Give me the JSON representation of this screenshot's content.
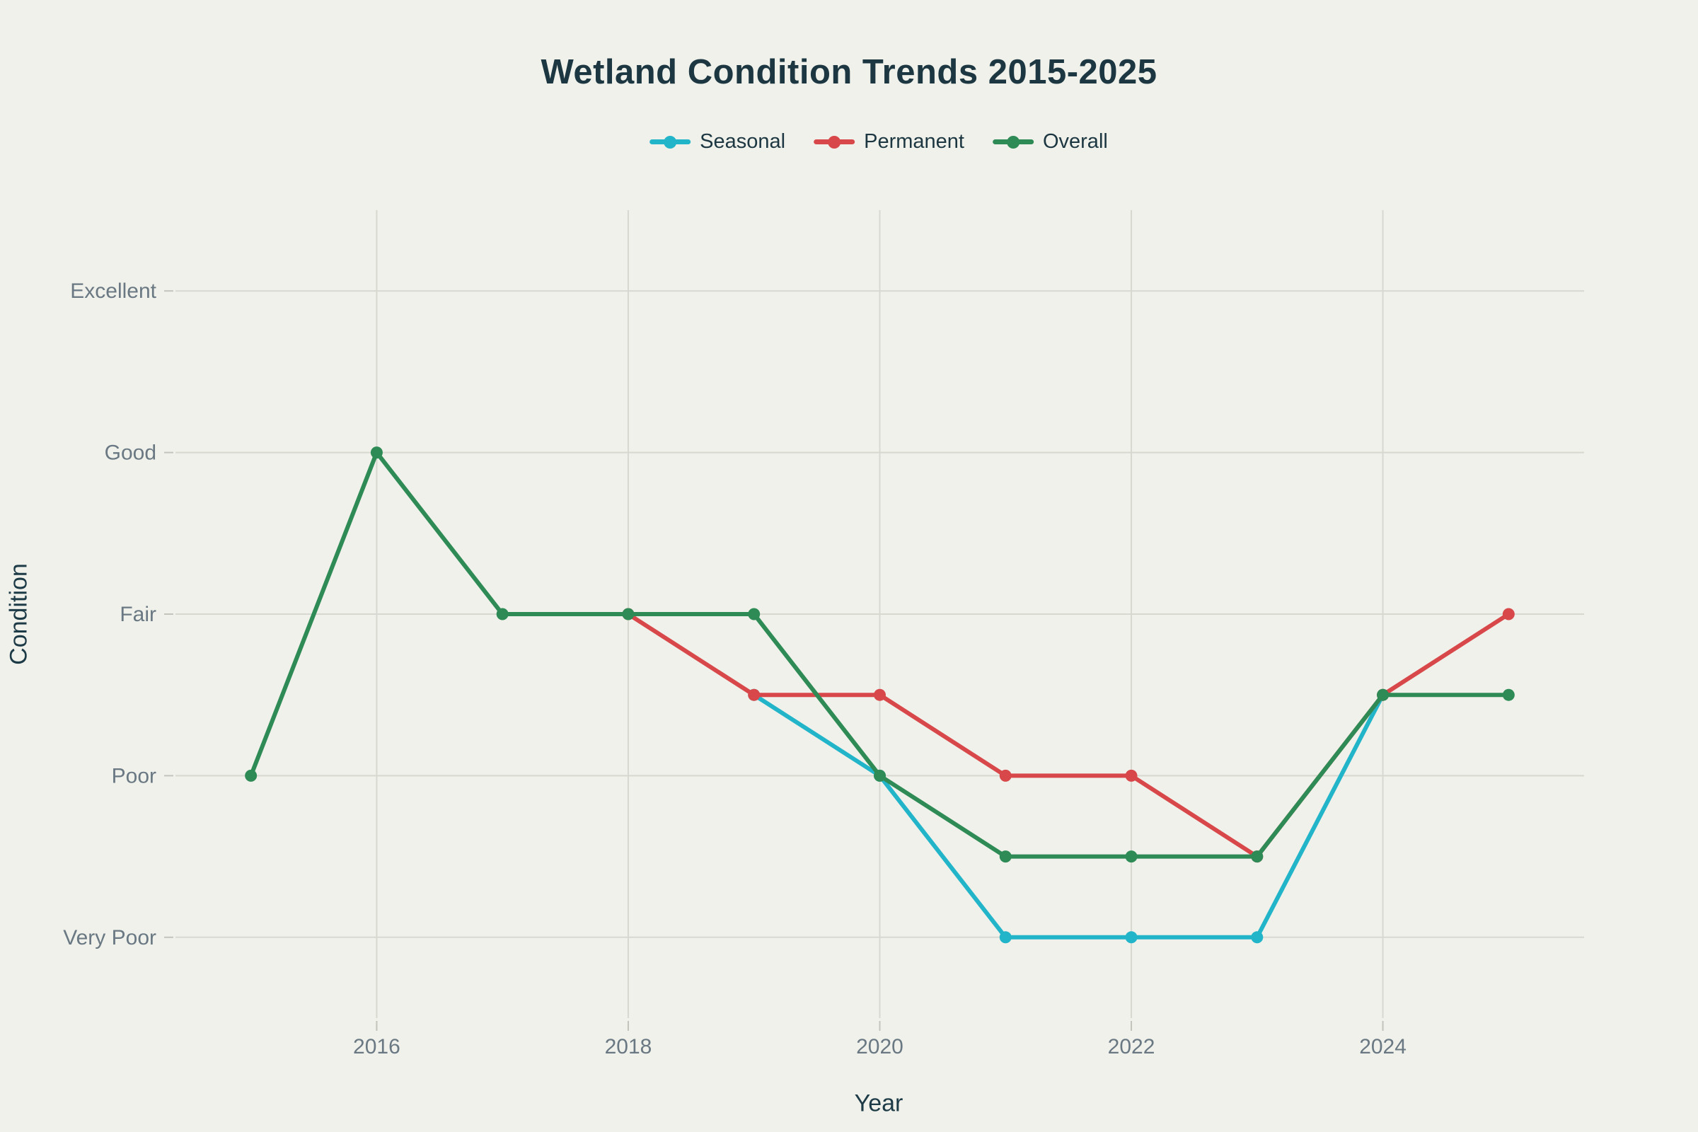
{
  "page": {
    "background": "#f0f1ea"
  },
  "chart_data": {
    "type": "line",
    "title": "Wetland Condition Trends 2015-2025",
    "xlabel": "Year",
    "ylabel": "Condition",
    "y_categories": [
      "Very Poor",
      "Poor",
      "Fair",
      "Good",
      "Excellent"
    ],
    "y_category_values": [
      1,
      2,
      3,
      4,
      5
    ],
    "x_ticks": [
      2016,
      2018,
      2020,
      2022,
      2024
    ],
    "x_range": [
      2014.4,
      2025.6
    ],
    "y_range": [
      0.5,
      5.5
    ],
    "grid": true,
    "legend_position": "top-center",
    "series": [
      {
        "name": "Seasonal",
        "color": "#22b5c9",
        "x": [
          2019,
          2020,
          2021,
          2022,
          2023,
          2024
        ],
        "values": [
          2.5,
          2,
          1,
          1,
          1,
          2.5
        ]
      },
      {
        "name": "Permanent",
        "color": "#d8484a",
        "x": [
          2018,
          2019,
          2020,
          2021,
          2022,
          2023,
          2024,
          2025
        ],
        "values": [
          3,
          2.5,
          2.5,
          2,
          2,
          1.5,
          2.5,
          3
        ]
      },
      {
        "name": "Overall",
        "color": "#2e8b56",
        "x": [
          2015,
          2016,
          2017,
          2018,
          2019,
          2020,
          2021,
          2022,
          2023,
          2024,
          2025
        ],
        "values": [
          2,
          4,
          3,
          3,
          3,
          2,
          1.5,
          1.5,
          1.5,
          2.5,
          2.5
        ]
      }
    ],
    "styles": {
      "grid_color": "#d7d9d1",
      "tick_color": "#c3c5bd",
      "tick_label_color": "#697883",
      "text_color": "#1c3741",
      "line_width": 6,
      "marker_radius": 8.5
    }
  }
}
